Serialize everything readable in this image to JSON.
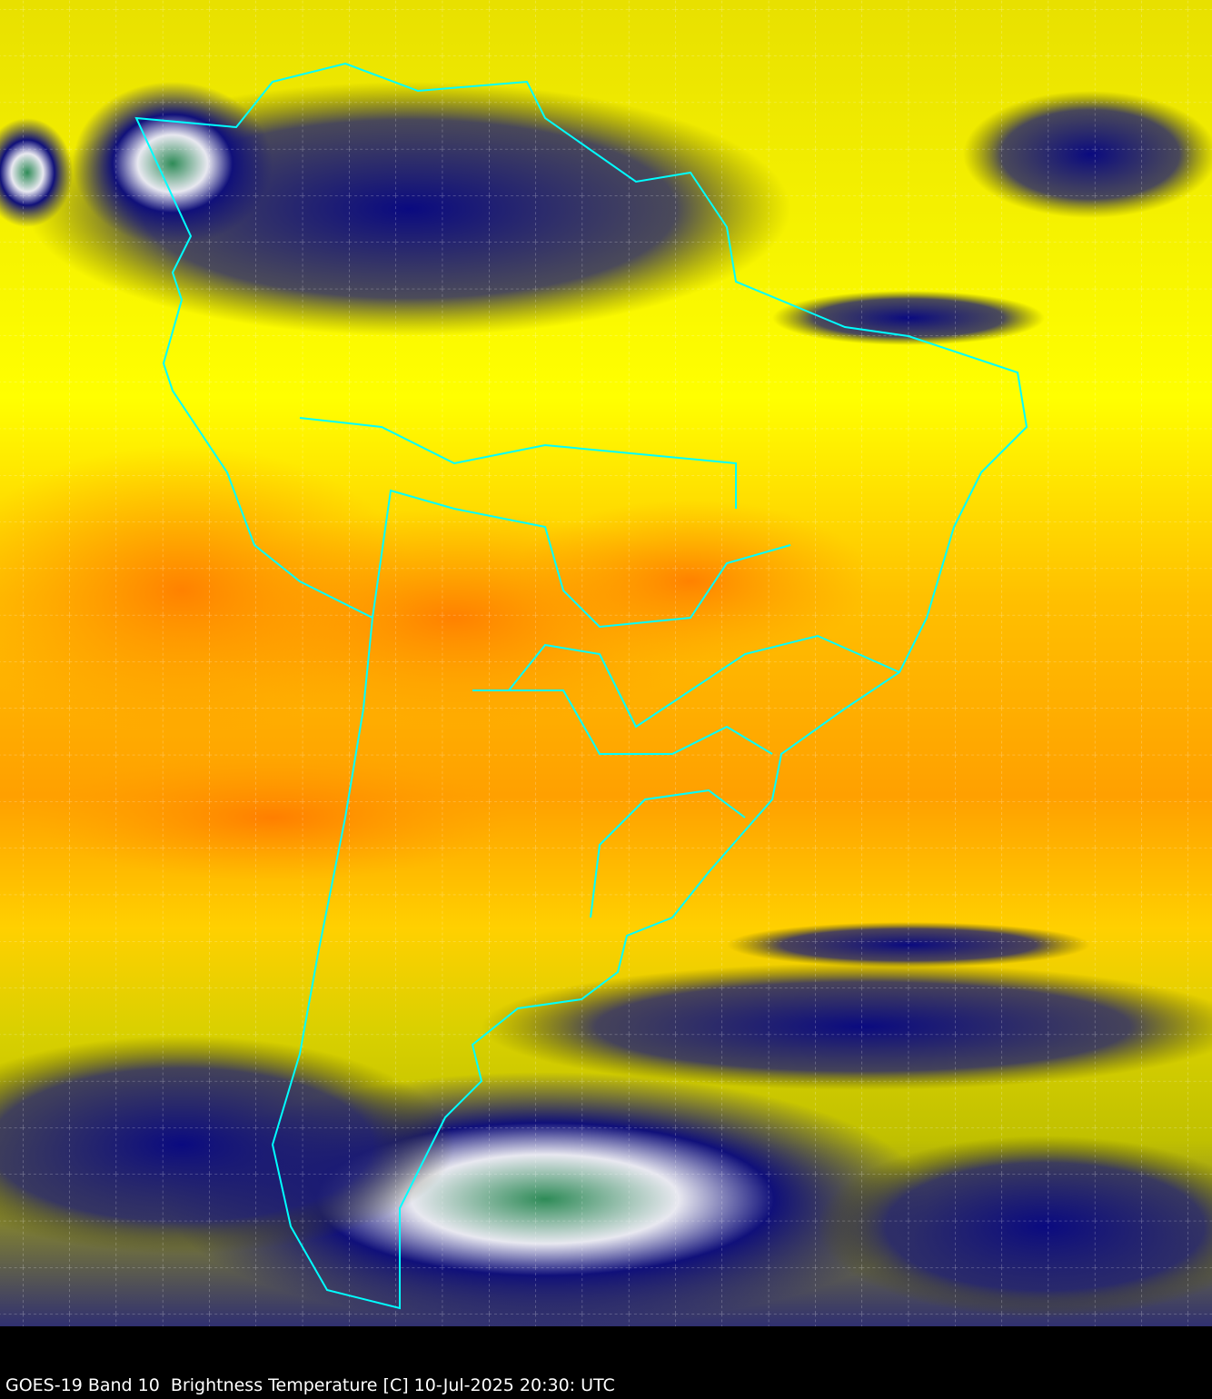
{
  "caption": "GOES-19 Band 10  Brightness Temperature [C] 10-Jul-2025 20:30: UTC",
  "map": {
    "region": "South America",
    "colors": {
      "warm_dry": "#ff8c00",
      "mid": "#ffff00",
      "moist": "#c8c800",
      "cold_cloud": "#0a0a80",
      "coldest": "#2e8b57",
      "borders": "#00ffff",
      "grid": "#ffffff"
    },
    "gridlines": "dashed"
  }
}
